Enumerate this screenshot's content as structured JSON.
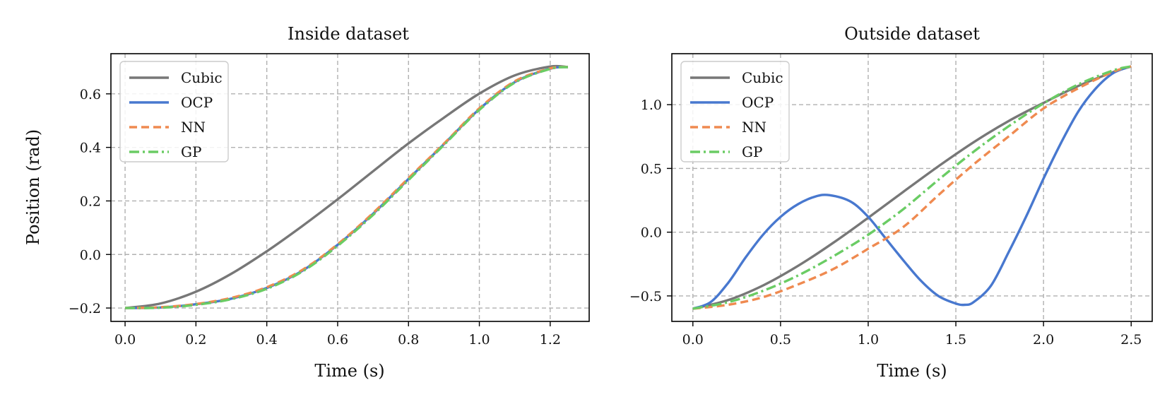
{
  "chart_data": [
    {
      "type": "line",
      "title": "Inside dataset",
      "xlabel": "Time (s)",
      "ylabel": "Position (rad)",
      "xlim": [
        -0.04,
        1.31
      ],
      "ylim": [
        -0.25,
        0.75
      ],
      "xticks": [
        0.0,
        0.2,
        0.4,
        0.6,
        0.8,
        1.0,
        1.2
      ],
      "xtick_labels": [
        "0.0",
        "0.2",
        "0.4",
        "0.6",
        "0.8",
        "1.0",
        "1.2"
      ],
      "yticks": [
        -0.2,
        0.0,
        0.2,
        0.4,
        0.6
      ],
      "ytick_labels": [
        "−0.2",
        "0.0",
        "0.2",
        "0.4",
        "0.6"
      ],
      "grid": true,
      "legend": "top-left",
      "series": [
        {
          "name": "Cubic",
          "color": "#777777",
          "dash": "solid",
          "x": [
            0.0,
            0.1,
            0.2,
            0.3,
            0.4,
            0.5,
            0.6,
            0.7,
            0.8,
            0.9,
            1.0,
            1.1,
            1.2,
            1.25
          ],
          "y": [
            -0.2,
            -0.183,
            -0.139,
            -0.072,
            0.012,
            0.106,
            0.206,
            0.311,
            0.415,
            0.511,
            0.601,
            0.669,
            0.702,
            0.7
          ]
        },
        {
          "name": "OCP",
          "color": "#4878cf",
          "dash": "solid",
          "x": [
            0.0,
            0.1,
            0.2,
            0.3,
            0.4,
            0.5,
            0.6,
            0.7,
            0.8,
            0.9,
            1.0,
            1.1,
            1.2,
            1.25
          ],
          "y": [
            -0.2,
            -0.198,
            -0.186,
            -0.165,
            -0.125,
            -0.061,
            0.036,
            0.152,
            0.282,
            0.412,
            0.543,
            0.644,
            0.694,
            0.7
          ]
        },
        {
          "name": "NN",
          "color": "#ef8a50",
          "dash": "dashed",
          "x": [
            0.0,
            0.1,
            0.2,
            0.3,
            0.4,
            0.5,
            0.6,
            0.7,
            0.8,
            0.9,
            1.0,
            1.1,
            1.2,
            1.25
          ],
          "y": [
            -0.2,
            -0.197,
            -0.185,
            -0.162,
            -0.122,
            -0.058,
            0.038,
            0.155,
            0.285,
            0.414,
            0.546,
            0.647,
            0.695,
            0.7
          ]
        },
        {
          "name": "GP",
          "color": "#6acc64",
          "dash": "dashdot",
          "x": [
            0.0,
            0.1,
            0.2,
            0.3,
            0.4,
            0.5,
            0.6,
            0.7,
            0.8,
            0.9,
            1.0,
            1.1,
            1.2,
            1.25
          ],
          "y": [
            -0.2,
            -0.199,
            -0.188,
            -0.167,
            -0.128,
            -0.064,
            0.032,
            0.148,
            0.278,
            0.409,
            0.54,
            0.642,
            0.693,
            0.7
          ]
        }
      ]
    },
    {
      "type": "line",
      "title": "Outside dataset",
      "xlabel": "Time (s)",
      "ylabel": "",
      "xlim": [
        -0.12,
        2.62
      ],
      "ylim": [
        -0.7,
        1.4
      ],
      "xticks": [
        0.0,
        0.5,
        1.0,
        1.5,
        2.0,
        2.5
      ],
      "xtick_labels": [
        "0.0",
        "0.5",
        "1.0",
        "1.5",
        "2.0",
        "2.5"
      ],
      "yticks": [
        -0.5,
        0.0,
        0.5,
        1.0
      ],
      "ytick_labels": [
        "−0.5",
        "0.0",
        "0.5",
        "1.0"
      ],
      "grid": true,
      "legend": "top-left",
      "series": [
        {
          "name": "Cubic",
          "color": "#777777",
          "dash": "solid",
          "x": [
            0.0,
            0.2,
            0.4,
            0.6,
            0.8,
            1.0,
            1.2,
            1.4,
            1.6,
            1.8,
            2.0,
            2.2,
            2.4,
            2.5
          ],
          "y": [
            -0.6,
            -0.533,
            -0.418,
            -0.264,
            -0.084,
            0.113,
            0.316,
            0.516,
            0.704,
            0.871,
            1.014,
            1.148,
            1.257,
            1.3
          ]
        },
        {
          "name": "OCP",
          "color": "#4878cf",
          "dash": "solid",
          "x": [
            0.0,
            0.1,
            0.2,
            0.3,
            0.4,
            0.5,
            0.6,
            0.7,
            0.78,
            0.9,
            1.0,
            1.1,
            1.2,
            1.3,
            1.4,
            1.5,
            1.55,
            1.6,
            1.7,
            1.8,
            1.9,
            2.0,
            2.1,
            2.2,
            2.3,
            2.4,
            2.5
          ],
          "y": [
            -0.6,
            -0.55,
            -0.4,
            -0.2,
            -0.02,
            0.12,
            0.22,
            0.28,
            0.29,
            0.24,
            0.12,
            -0.05,
            -0.22,
            -0.38,
            -0.5,
            -0.56,
            -0.57,
            -0.55,
            -0.42,
            -0.16,
            0.12,
            0.42,
            0.7,
            0.95,
            1.13,
            1.25,
            1.3
          ]
        },
        {
          "name": "NN",
          "color": "#ef8a50",
          "dash": "dashed",
          "x": [
            0.0,
            0.2,
            0.4,
            0.6,
            0.8,
            1.0,
            1.2,
            1.4,
            1.6,
            1.8,
            2.0,
            2.2,
            2.4,
            2.5
          ],
          "y": [
            -0.6,
            -0.57,
            -0.51,
            -0.41,
            -0.29,
            -0.13,
            0.04,
            0.29,
            0.53,
            0.75,
            0.97,
            1.13,
            1.26,
            1.3
          ]
        },
        {
          "name": "GP",
          "color": "#6acc64",
          "dash": "dashdot",
          "x": [
            0.0,
            0.2,
            0.4,
            0.6,
            0.8,
            1.0,
            1.2,
            1.4,
            1.6,
            1.8,
            2.0,
            2.2,
            2.4,
            2.5
          ],
          "y": [
            -0.6,
            -0.55,
            -0.46,
            -0.34,
            -0.19,
            -0.02,
            0.18,
            0.41,
            0.63,
            0.83,
            1.01,
            1.16,
            1.27,
            1.3
          ]
        }
      ]
    }
  ]
}
